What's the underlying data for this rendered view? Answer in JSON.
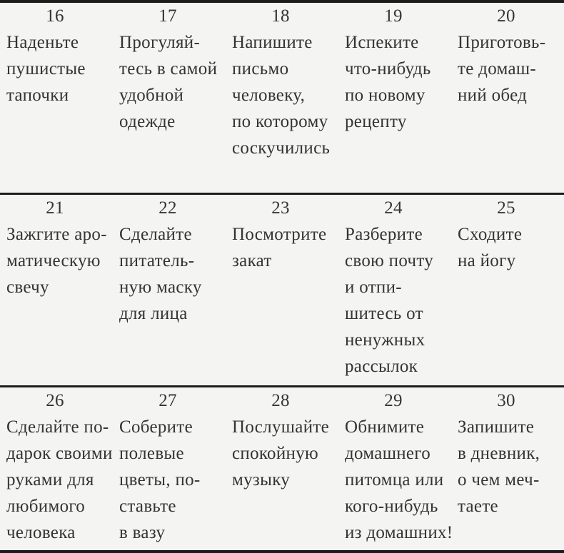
{
  "colors": {
    "background": "#f4f4f2",
    "text": "#343434",
    "rule": "#1c1c1c"
  },
  "table": {
    "rows": [
      {
        "cells": [
          {
            "day": "16",
            "lines": [
              "Наденьте",
              "пушистые",
              "тапочки"
            ]
          },
          {
            "day": "17",
            "lines": [
              "Прогуляй-",
              "тесь в самой",
              "удобной",
              "одежде"
            ]
          },
          {
            "day": "18",
            "lines": [
              "Напишите",
              "письмо",
              "человеку,",
              "по которому",
              "соскучились"
            ]
          },
          {
            "day": "19",
            "lines": [
              "Испеките",
              "что-нибудь",
              "по новому",
              "рецепту"
            ]
          },
          {
            "day": "20",
            "lines": [
              "Приготовь-",
              "те домаш-",
              "ний обед"
            ]
          }
        ]
      },
      {
        "cells": [
          {
            "day": "21",
            "lines": [
              "Зажгите аро-",
              "матическую",
              "свечу"
            ]
          },
          {
            "day": "22",
            "lines": [
              "Сделайте",
              "питатель-",
              "ную маску",
              "для лица"
            ]
          },
          {
            "day": "23",
            "lines": [
              "Посмотрите",
              "закат"
            ]
          },
          {
            "day": "24",
            "lines": [
              "Разберите",
              "свою почту",
              "и отпи-",
              "шитесь от",
              "ненужных",
              "рассылок"
            ]
          },
          {
            "day": "25",
            "lines": [
              "Сходите",
              "на йогу"
            ]
          }
        ]
      },
      {
        "cells": [
          {
            "day": "26",
            "lines": [
              "Сделайте по-",
              "дарок своими",
              "руками для",
              "любимого",
              "человека"
            ]
          },
          {
            "day": "27",
            "lines": [
              "Соберите",
              "полевые",
              "цветы, по-",
              "ставьте",
              "в вазу"
            ]
          },
          {
            "day": "28",
            "lines": [
              "Послушайте",
              "спокойную",
              "музыку"
            ]
          },
          {
            "day": "29",
            "lines": [
              "Обнимите",
              "домашнего",
              "питомца или",
              "кого-нибудь",
              "из домашних!"
            ]
          },
          {
            "day": "30",
            "lines": [
              "Запишите",
              "в дневник,",
              "о чем меч-",
              "таете"
            ]
          }
        ]
      }
    ]
  }
}
